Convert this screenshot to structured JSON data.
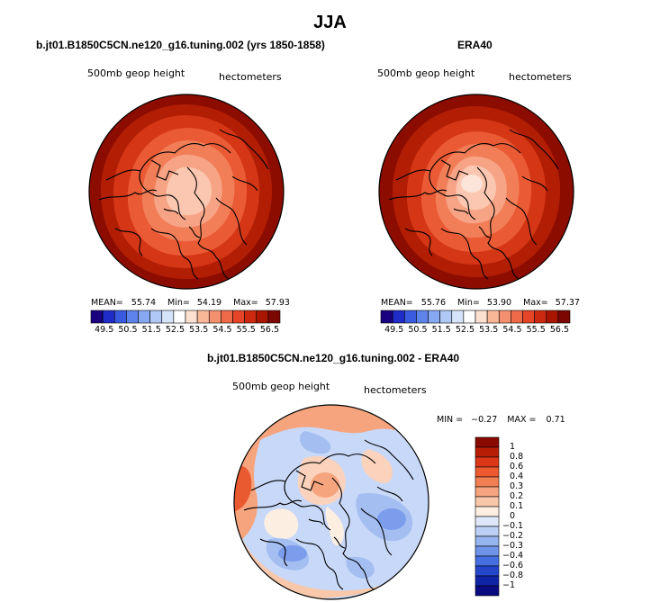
{
  "figure": {
    "title": "JJA",
    "bottom_title": "b.jt01.B1850C5CN.ne120_g16.tuning.002 - ERA40"
  },
  "panels": [
    {
      "title": "b.jt01.B1850C5CN.ne120_g16.tuning.002 (yrs 1850-1858)",
      "variable": "500mb geop height",
      "units": "hectometers",
      "mean_label": "MEAN=",
      "mean": "55.74",
      "min_label": "Min=",
      "min": "54.19",
      "max_label": "Max=",
      "max": "57.93"
    },
    {
      "title": "ERA40",
      "variable": "500mb geop height",
      "units": "hectometers",
      "mean_label": "MEAN=",
      "mean": "55.76",
      "min_label": "Min=",
      "min": "53.90",
      "max_label": "Max=",
      "max": "57.37"
    }
  ],
  "diff_panel": {
    "variable": "500mb geop height",
    "units": "hectometers",
    "min_label": "MIN =",
    "min": "−0.27",
    "max_label": "MAX =",
    "max": "0.71"
  },
  "colorbar_abs": {
    "ticks": [
      "49.5",
      "50.5",
      "51.5",
      "52.5",
      "53.5",
      "54.5",
      "55.5",
      "56.5"
    ],
    "colors": [
      "#1a0080",
      "#1f2cc8",
      "#3a5ae0",
      "#5e84ec",
      "#86a8f2",
      "#afc8f6",
      "#d6e4fa",
      "#ffffff",
      "#fce0d0",
      "#f8b898",
      "#f49070",
      "#ee6a48",
      "#e64528",
      "#cc2a10",
      "#a81600",
      "#7c0600"
    ]
  },
  "colorbar_diff": {
    "ticks": [
      "1",
      "0.8",
      "0.6",
      "0.4",
      "0.3",
      "0.2",
      "0.1",
      "0",
      "−0.1",
      "−0.2",
      "−0.3",
      "−0.4",
      "−0.6",
      "−0.8",
      "−1"
    ],
    "colors_top_to_bottom": [
      "#8a0a00",
      "#b81e06",
      "#dc3618",
      "#ee5a30",
      "#f27e54",
      "#f6a47e",
      "#f9c8aa",
      "#fdeee2",
      "#dfe8fa",
      "#bcd0f6",
      "#96b4f0",
      "#6e94ea",
      "#4670e2",
      "#2446cc",
      "#1024a8",
      "#080c80"
    ]
  },
  "map_colors": {
    "land_line": "#000000",
    "abs_outer": "#8c0c00",
    "abs_ring2": "#b21e04",
    "abs_ring3": "#d43616",
    "abs_ring4": "#ea5a34",
    "abs_ring5": "#f27e58",
    "abs_ring6": "#f7a486",
    "abs_center": "#fbc7b0",
    "abs_peak": "#fde4d8",
    "diff_pos_strong": "#ea5a30",
    "diff_pos": "#f6a47e",
    "diff_pos_weak": "#fbd2bc",
    "diff_neutral": "#fdeee2",
    "diff_neg_weak": "#c8d8f8",
    "diff_neg": "#a4bef2",
    "diff_neg_strong": "#7c9cec"
  }
}
